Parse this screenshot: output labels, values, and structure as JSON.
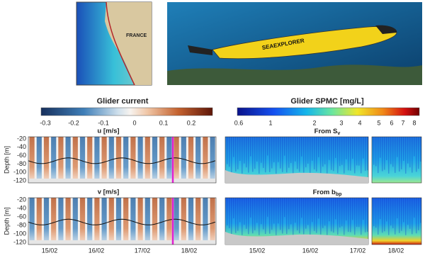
{
  "inset_map": {
    "label": "FRANCE"
  },
  "photo": {
    "label": "SEAEXPLORER"
  },
  "current": {
    "title": "Glider current",
    "colorbar_ticks": [
      "-0.3",
      "-0.2",
      "-0.1",
      "0",
      "0.1",
      "0.2"
    ],
    "panels": [
      {
        "title": "u [m/s]"
      },
      {
        "title": "v [m/s]"
      }
    ],
    "y_label": "Depth [m]",
    "y_ticks": [
      "-20",
      "-40",
      "-60",
      "-80",
      "-100",
      "-120"
    ],
    "x_ticks": [
      "15/02",
      "16/02",
      "17/02",
      "18/02"
    ]
  },
  "spmc": {
    "title": "Glider SPMC [mg/L]",
    "colorbar_ticks": [
      "0.6",
      "1",
      "2",
      "3",
      "4",
      "5",
      "6",
      "7",
      "8"
    ],
    "panels": [
      {
        "title": "From S",
        "subscript": "v"
      },
      {
        "title": "From b",
        "subscript": "bp"
      }
    ],
    "x_ticks": [
      "15/02",
      "16/02",
      "17/02",
      "18/02"
    ]
  }
}
